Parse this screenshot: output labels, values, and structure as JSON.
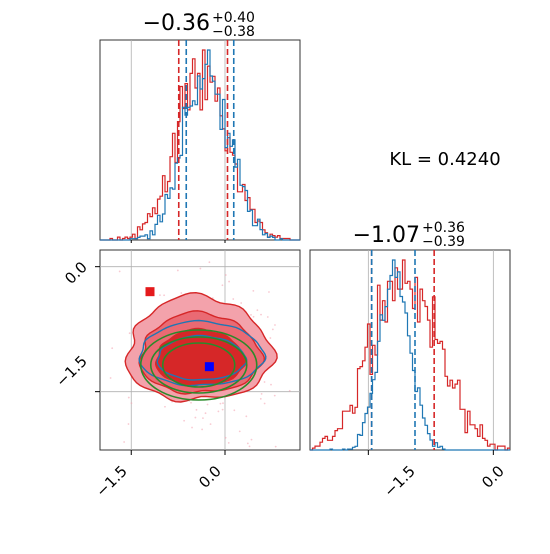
{
  "chart_data": [
    {
      "type": "histogram",
      "panel": "marginal-x",
      "title": "−0.36",
      "title_sup": "+0.40",
      "title_sub": "−0.38",
      "xlim": [
        -2.0,
        1.2
      ],
      "grid": true,
      "series": [
        {
          "color": "#d62728",
          "quantiles": [
            -0.74,
            0.04
          ]
        },
        {
          "color": "#1f77b4",
          "quantiles": [
            -0.62,
            0.14
          ]
        }
      ]
    },
    {
      "type": "histogram",
      "panel": "marginal-y",
      "title": "−1.07",
      "title_sup": "+0.36",
      "title_sub": "−0.39",
      "xlim": [
        -2.2,
        0.2
      ],
      "x_ticks": [
        "−1.5",
        "0.0"
      ],
      "grid": true,
      "series": [
        {
          "color": "#d62728",
          "quantiles": [
            -1.46,
            -0.71
          ]
        },
        {
          "color": "#1f77b4",
          "quantiles": [
            -1.46,
            -0.94
          ]
        }
      ]
    },
    {
      "type": "contour",
      "panel": "joint",
      "xlim": [
        -2.0,
        1.2
      ],
      "ylim": [
        -2.2,
        0.2
      ],
      "x_ticks": [
        "−1.5",
        "0.0"
      ],
      "y_ticks": [
        "0.0",
        "−1.5"
      ],
      "grid": true,
      "markers": [
        {
          "x": -1.2,
          "y": -0.3,
          "color": "#e41a1c"
        },
        {
          "x": -0.25,
          "y": -1.2,
          "color": "#0000ff"
        }
      ],
      "series": [
        {
          "color": "#d62728",
          "kind": "filled-contour"
        },
        {
          "color": "#1f77b4",
          "kind": "contour"
        },
        {
          "color": "#2a8a2a",
          "kind": "ellipses"
        }
      ]
    }
  ],
  "annotation": "KL = 0.4240"
}
